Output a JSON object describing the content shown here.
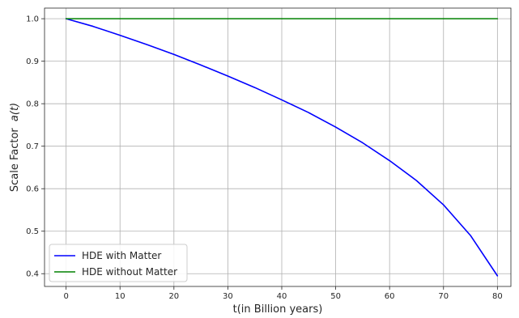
{
  "chart_data": {
    "type": "line",
    "title": "",
    "xlabel": "t(in Billion years)",
    "ylabel": "Scale Factor",
    "ylabel_italic": "a(t)",
    "xlim": [
      -4,
      82.5
    ],
    "ylim": [
      0.37,
      1.025
    ],
    "xticks": [
      0,
      10,
      20,
      30,
      40,
      50,
      60,
      70,
      80
    ],
    "yticks": [
      0.4,
      0.5,
      0.6,
      0.7,
      0.8,
      0.9,
      1.0
    ],
    "xtick_labels": [
      "0",
      "10",
      "20",
      "30",
      "40",
      "50",
      "60",
      "70",
      "80"
    ],
    "ytick_labels": [
      "0.4",
      "0.5",
      "0.6",
      "0.7",
      "0.8",
      "0.9",
      "1.0"
    ],
    "grid": true,
    "legend_position": "lower-left",
    "series": [
      {
        "name": "HDE with Matter",
        "color": "#0000ff",
        "x": [
          0,
          5,
          10,
          15,
          20,
          25,
          30,
          35,
          40,
          45,
          50,
          55,
          60,
          65,
          70,
          75,
          80
        ],
        "y": [
          1.0,
          0.982,
          0.961,
          0.939,
          0.916,
          0.891,
          0.865,
          0.838,
          0.809,
          0.779,
          0.745,
          0.708,
          0.666,
          0.619,
          0.562,
          0.49,
          0.395
        ]
      },
      {
        "name": "HDE without Matter",
        "color": "#008000",
        "x": [
          0,
          80
        ],
        "y": [
          1.0,
          1.0
        ]
      }
    ]
  }
}
